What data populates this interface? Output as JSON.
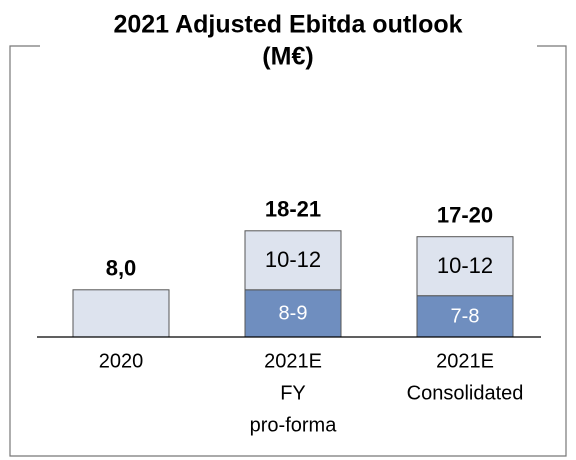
{
  "chart_data": {
    "type": "stacked-bar",
    "title": [
      "2021 Adjusted Ebitda outlook",
      "(M€)"
    ],
    "categories": [
      [
        "2020"
      ],
      [
        "2021E",
        "FY",
        "pro-forma"
      ],
      [
        "2021E",
        "Consolidated"
      ]
    ],
    "series": [
      {
        "color": "#6f8ebf",
        "label_color": "#ffffff",
        "values": [
          null,
          8,
          7
        ],
        "value_labels": [
          null,
          "8-9",
          "7-8"
        ]
      },
      {
        "color": "#dde3ee",
        "label_color": "#000000",
        "values": [
          8,
          10,
          10
        ],
        "value_labels": [
          null,
          "10-12",
          "10-12"
        ]
      }
    ],
    "totals": [
      8,
      18,
      17
    ],
    "total_labels": [
      "8,0",
      "18-21",
      "17-20"
    ]
  }
}
